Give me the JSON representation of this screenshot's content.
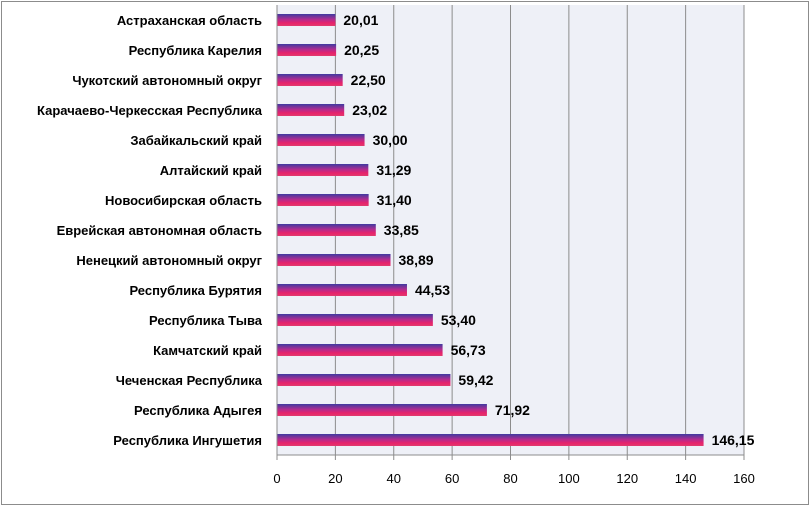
{
  "chart_data": {
    "type": "bar",
    "orientation": "horizontal",
    "title": "",
    "xlabel": "",
    "ylabel": "",
    "categories": [
      "Астраханская область",
      "Республика Карелия",
      "Чукотский автономный округ",
      "Карачаево-Черкесская Республика",
      "Забайкальский край",
      "Алтайский край",
      "Новосибирская область",
      "Еврейская автономная область",
      "Ненецкий автономный округ",
      "Республика Бурятия",
      "Республика Тыва",
      "Камчатский край",
      "Чеченская Республика",
      "Республика Адыгея",
      "Республика Ингушетия"
    ],
    "values": [
      20.01,
      20.25,
      22.5,
      23.02,
      30.0,
      31.29,
      31.4,
      33.85,
      38.89,
      44.53,
      53.4,
      56.73,
      59.42,
      71.92,
      146.15
    ],
    "value_labels": [
      "20,01",
      "20,25",
      "22,50",
      "23,02",
      "30,00",
      "31,29",
      "31,40",
      "33,85",
      "38,89",
      "44,53",
      "53,40",
      "56,73",
      "59,42",
      "71,92",
      "146,15"
    ],
    "xlim": [
      0,
      160
    ],
    "xticks": [
      0,
      20,
      40,
      60,
      80,
      100,
      120,
      140,
      160
    ],
    "xtick_labels": [
      "0",
      "20",
      "40",
      "60",
      "80",
      "100",
      "120",
      "140",
      "160"
    ],
    "grid": true,
    "legend": "none",
    "colors": {
      "plot_bg": "#eef0f7",
      "grid": "#8c8c8c",
      "bar_top": "#3f3aa0",
      "bar_mid": "#c02a8a",
      "bar_bottom": "#e8226a"
    }
  }
}
